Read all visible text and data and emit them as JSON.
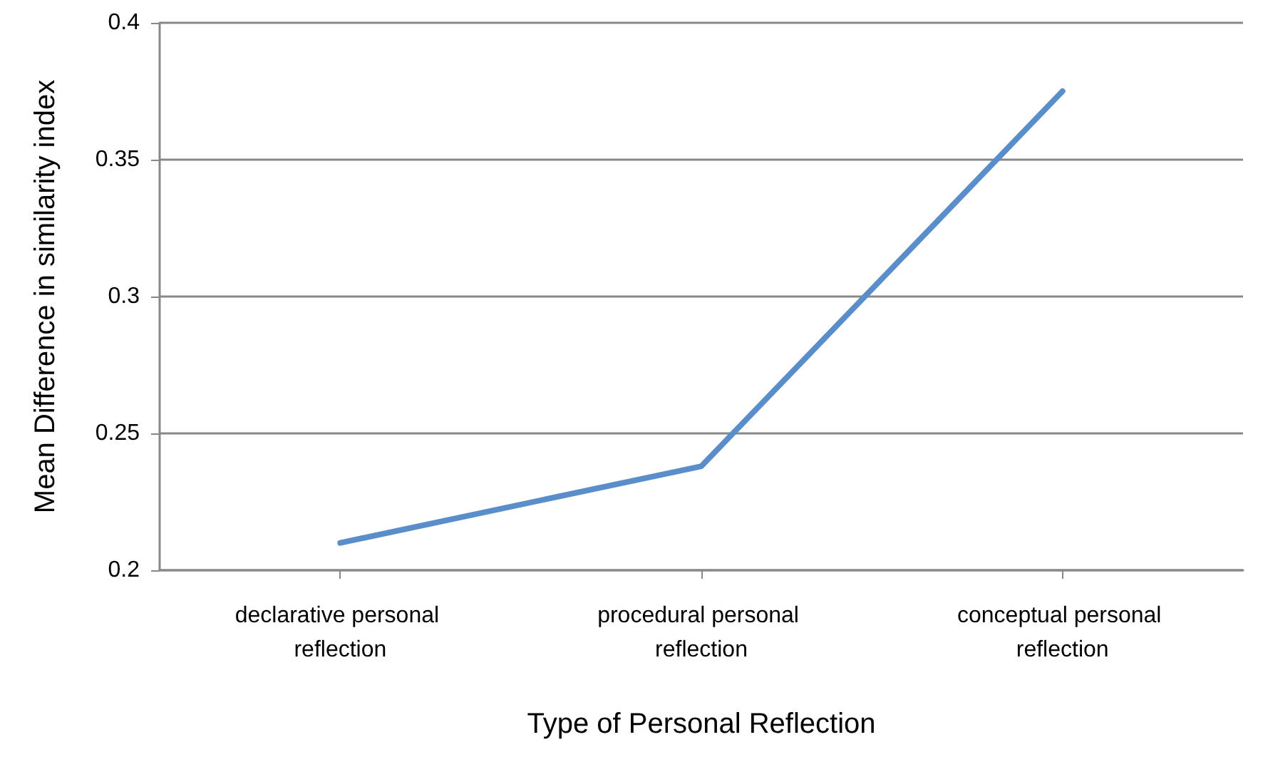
{
  "chart_data": {
    "type": "line",
    "xlabel": "Type of Personal Reflection",
    "ylabel": "Mean Difference in similarity index",
    "categories": [
      "declarative personal reflection",
      "procedural personal reflection",
      "conceptual personal reflection"
    ],
    "series": [
      {
        "color": "#5a8ecb",
        "values": [
          0.21,
          0.238,
          0.375
        ]
      }
    ],
    "ylim": [
      0.2,
      0.4
    ],
    "yticks": [
      0.2,
      0.25,
      0.3,
      0.35,
      0.4
    ],
    "grid": "y",
    "marker": "none",
    "line_style": "solid"
  }
}
